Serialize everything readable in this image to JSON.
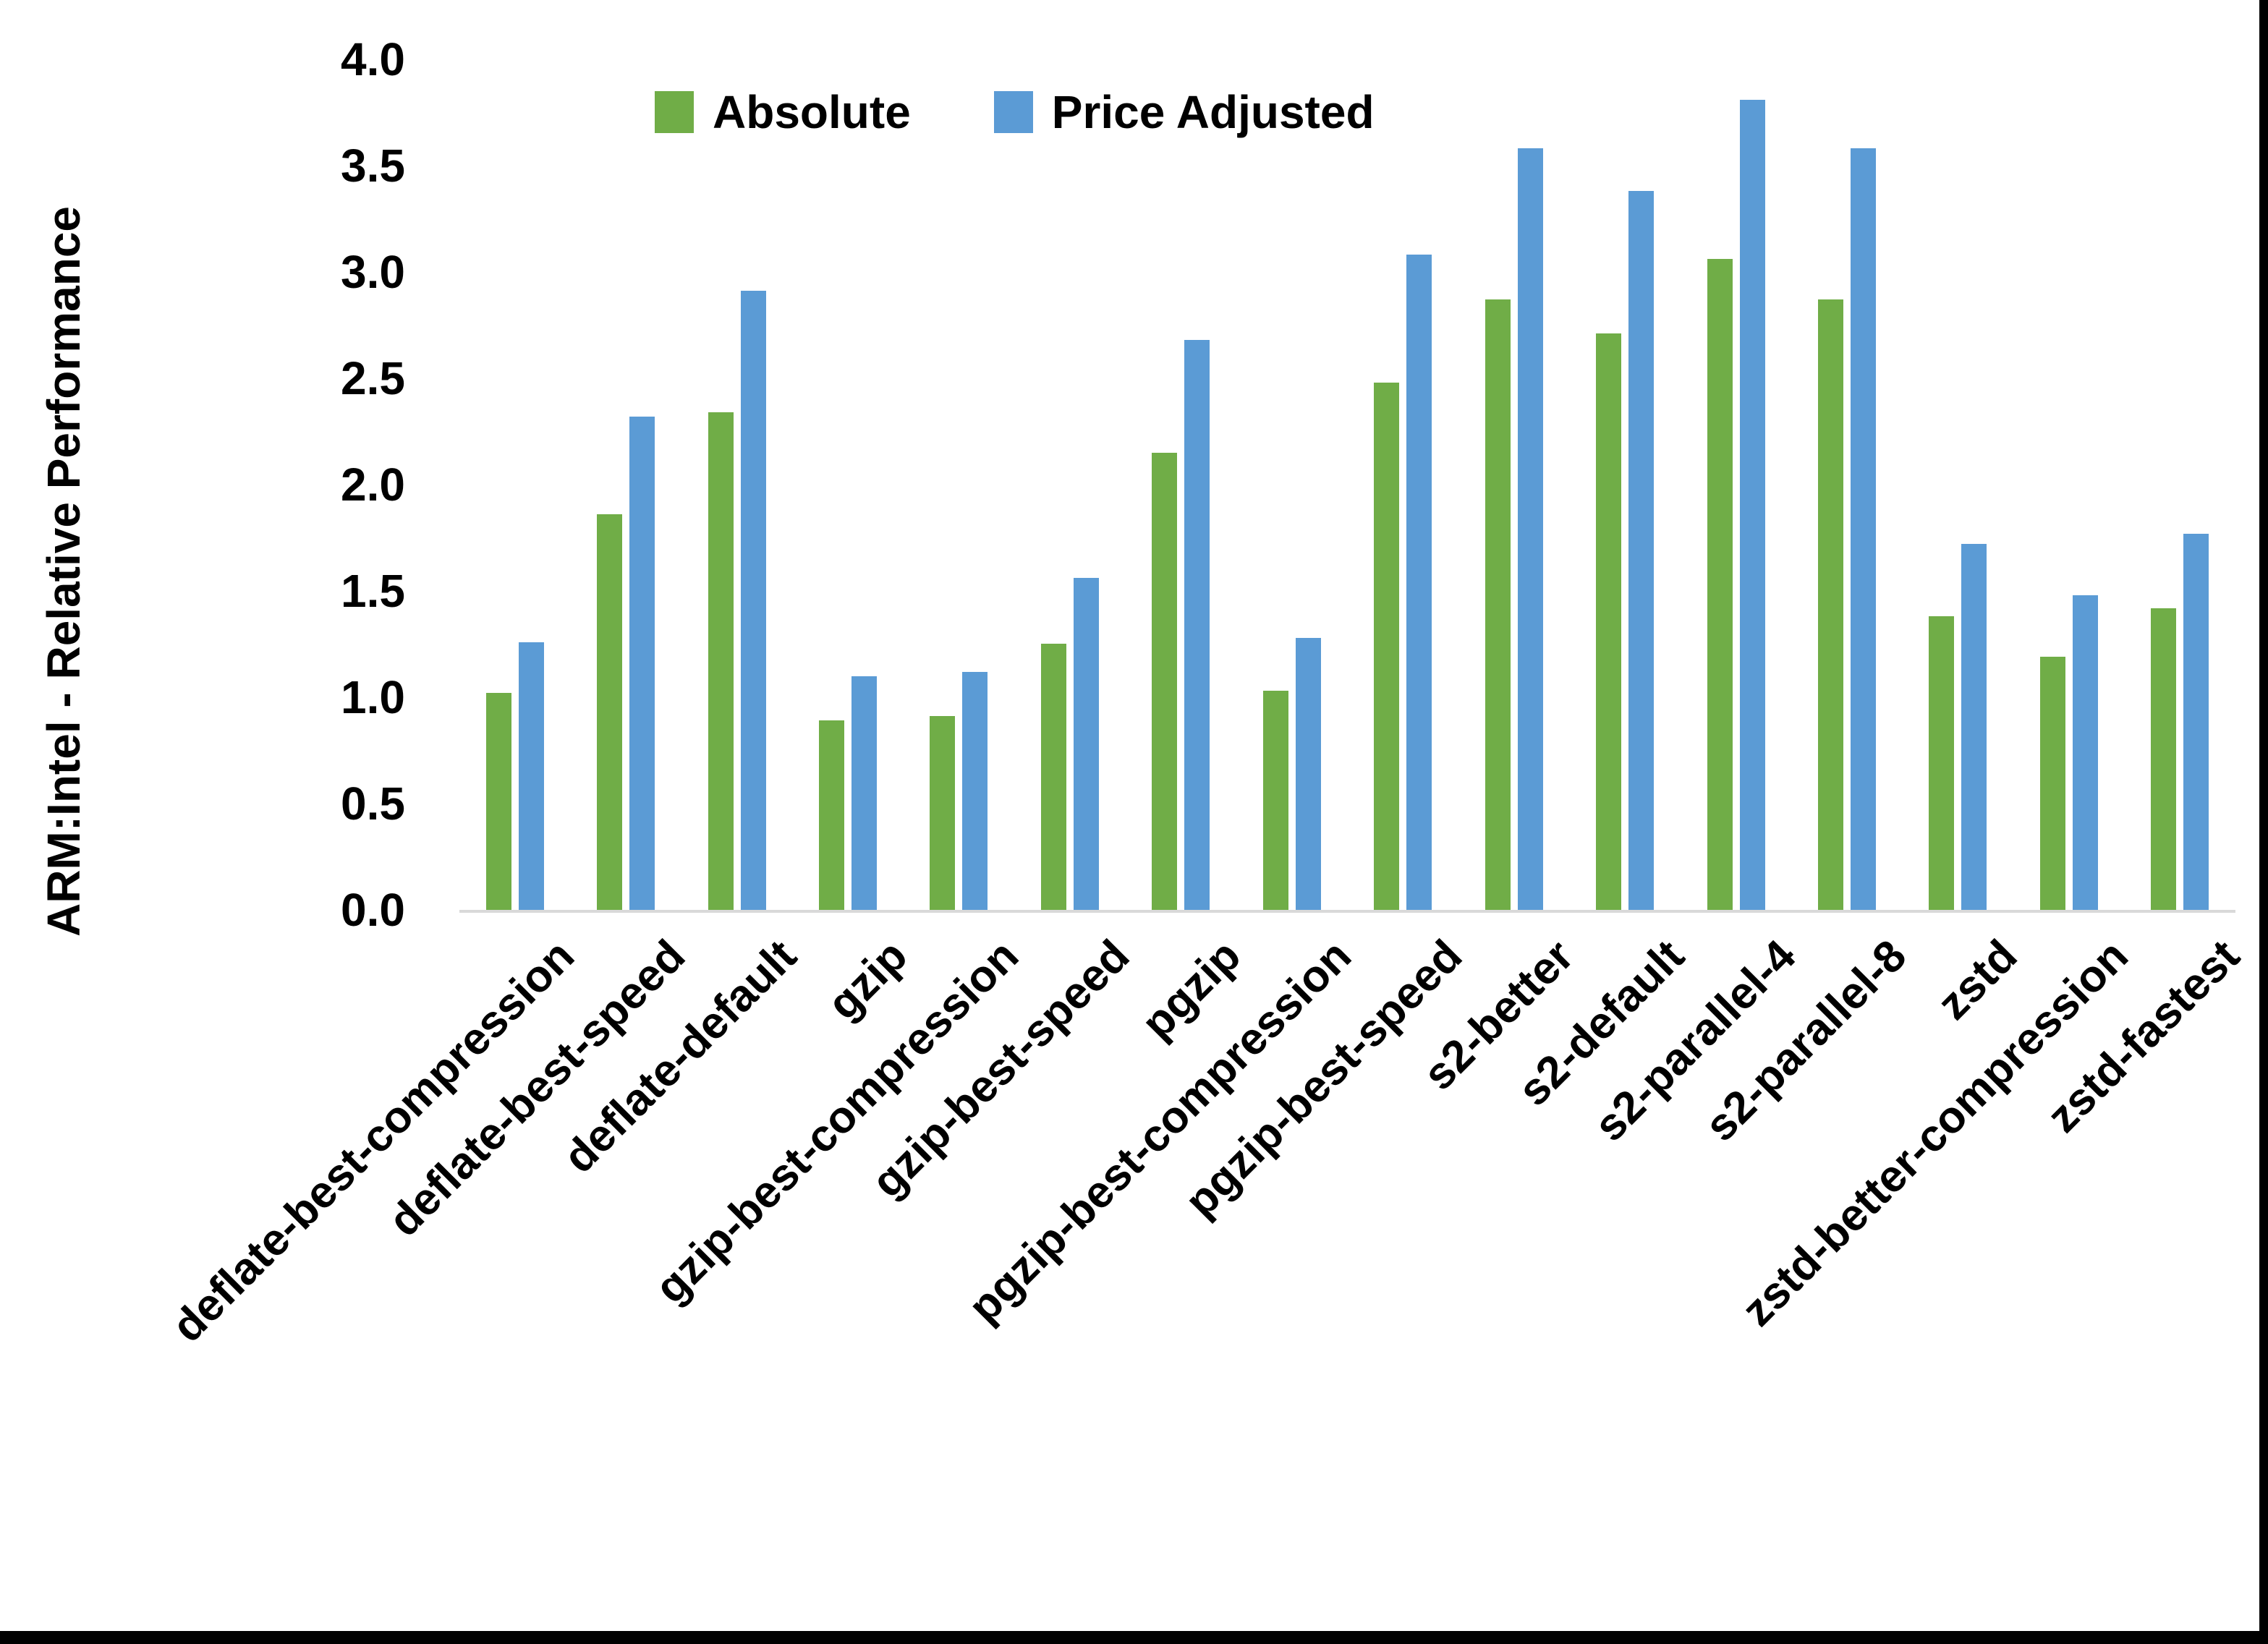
{
  "chart_data": {
    "type": "bar",
    "title": "",
    "ylabel": "ARM:Intel - Relative Performance",
    "xlabel": "",
    "ylim": [
      0,
      4.0
    ],
    "ytick_step": 0.5,
    "yticks": [
      "4.0",
      "3.5",
      "3.0",
      "2.5",
      "2.0",
      "1.5",
      "1.0",
      "0.5",
      "0.0"
    ],
    "grid": false,
    "legend_position": "top-center",
    "categories": [
      "deflate-best-compression",
      "deflate-best-speed",
      "deflate-default",
      "gzip",
      "gzip-best-compression",
      "gzip-best-speed",
      "pgzip",
      "pgzip-best-compression",
      "pgzip-best-speed",
      "s2-better",
      "s2-default",
      "s2-parallel-4",
      "s2-parallel-8",
      "zstd",
      "zstd-better-compression",
      "zstd-fastest"
    ],
    "series": [
      {
        "name": "Absolute",
        "color": "#70AD47",
        "values": [
          1.02,
          1.86,
          2.34,
          0.89,
          0.91,
          1.25,
          2.15,
          1.03,
          2.48,
          2.87,
          2.71,
          3.06,
          2.87,
          1.38,
          1.19,
          1.42
        ]
      },
      {
        "name": "Price Adjusted",
        "color": "#5B9BD5",
        "values": [
          1.26,
          2.32,
          2.91,
          1.1,
          1.12,
          1.56,
          2.68,
          1.28,
          3.08,
          3.58,
          3.38,
          3.81,
          3.58,
          1.72,
          1.48,
          1.77
        ]
      }
    ]
  },
  "colors": {
    "background": "#FFFFFF",
    "axis_line": "#D9D9D9",
    "text": "#000000",
    "frame_border": "#000000"
  }
}
